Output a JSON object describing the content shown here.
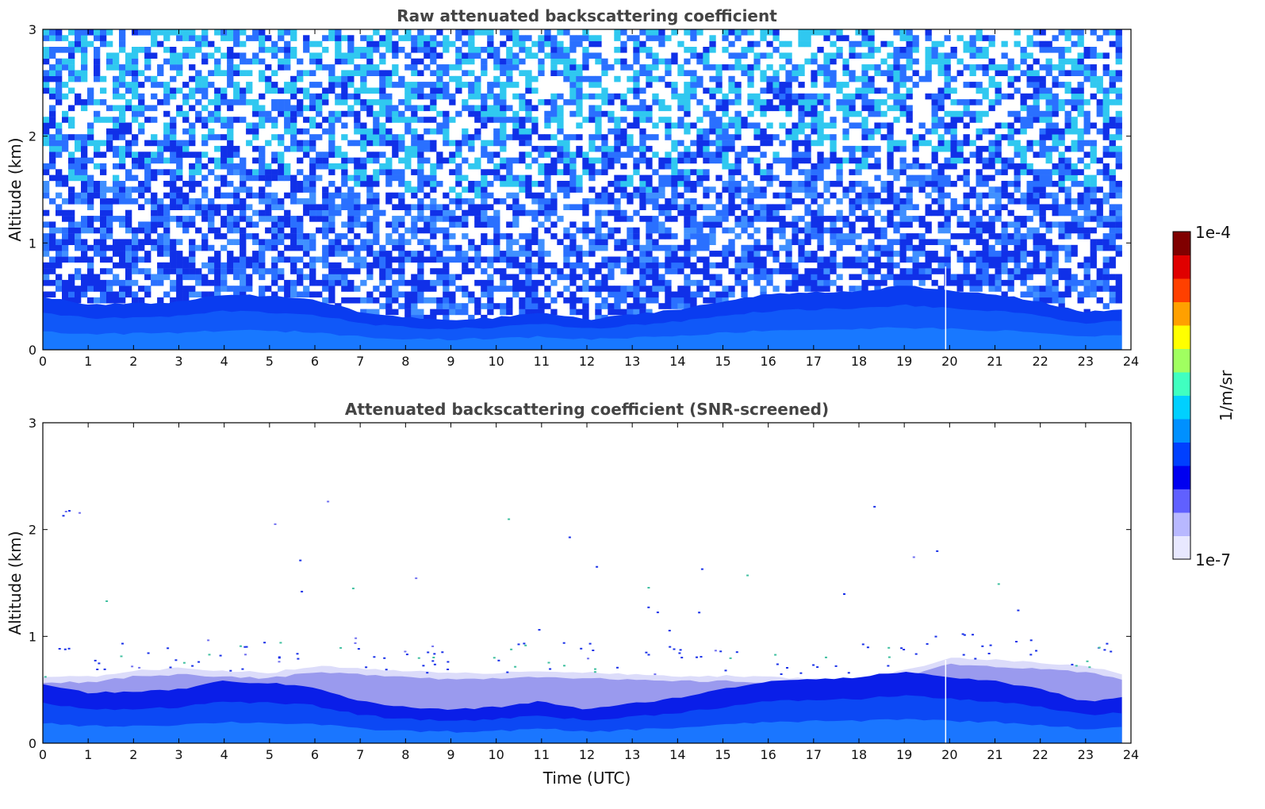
{
  "chart_data": [
    {
      "type": "heatmap",
      "title": "Raw attenuated backscattering coefficient",
      "xlabel": "",
      "ylabel": "Altitude (km)",
      "xlim": [
        0,
        24
      ],
      "ylim": [
        0,
        3
      ],
      "x_ticks": [
        "0",
        "1",
        "2",
        "3",
        "4",
        "5",
        "6",
        "7",
        "8",
        "9",
        "10",
        "11",
        "12",
        "13",
        "14",
        "15",
        "16",
        "17",
        "18",
        "19",
        "20",
        "21",
        "22",
        "23",
        "24"
      ],
      "y_ticks": [
        "0",
        "1",
        "2",
        "3"
      ],
      "x": [
        0,
        1,
        2,
        3,
        4,
        5,
        6,
        7,
        8,
        9,
        10,
        11,
        12,
        13,
        14,
        15,
        16,
        17,
        18,
        19,
        20,
        21,
        22,
        23,
        23.8
      ],
      "boundary_layer_top_km": [
        0.5,
        0.42,
        0.43,
        0.45,
        0.52,
        0.5,
        0.47,
        0.35,
        0.3,
        0.28,
        0.3,
        0.35,
        0.28,
        0.33,
        0.38,
        0.45,
        0.52,
        0.54,
        0.55,
        0.6,
        0.55,
        0.52,
        0.45,
        0.35,
        0.38
      ],
      "data_gap_x": 19.9,
      "data_end_x": 23.8
    },
    {
      "type": "heatmap",
      "title": "Attenuated backscattering coefficient (SNR-screened)",
      "xlabel": "Time (UTC)",
      "ylabel": "Altitude (km)",
      "xlim": [
        0,
        24
      ],
      "ylim": [
        0,
        3
      ],
      "x_ticks": [
        "0",
        "1",
        "2",
        "3",
        "4",
        "5",
        "6",
        "7",
        "8",
        "9",
        "10",
        "11",
        "12",
        "13",
        "14",
        "15",
        "16",
        "17",
        "18",
        "19",
        "20",
        "21",
        "22",
        "23",
        "24"
      ],
      "y_ticks": [
        "0",
        "1",
        "2",
        "3"
      ],
      "x": [
        0,
        1,
        2,
        3,
        4,
        5,
        6,
        7,
        8,
        9,
        10,
        11,
        12,
        13,
        14,
        15,
        16,
        17,
        18,
        19,
        20,
        21,
        22,
        23,
        23.8
      ],
      "boundary_layer_top_km": [
        0.5,
        0.42,
        0.43,
        0.45,
        0.52,
        0.5,
        0.47,
        0.35,
        0.3,
        0.28,
        0.3,
        0.35,
        0.28,
        0.33,
        0.38,
        0.45,
        0.52,
        0.54,
        0.55,
        0.6,
        0.55,
        0.52,
        0.45,
        0.35,
        0.38
      ],
      "screened_top_km": [
        0.62,
        0.62,
        0.68,
        0.7,
        0.68,
        0.66,
        0.72,
        0.7,
        0.68,
        0.65,
        0.66,
        0.68,
        0.66,
        0.64,
        0.63,
        0.63,
        0.62,
        0.6,
        0.6,
        0.68,
        0.8,
        0.78,
        0.75,
        0.72,
        0.65
      ],
      "data_gap_x": 19.9,
      "data_end_x": 23.8
    }
  ],
  "colorbar": {
    "label": "1/m/sr",
    "min_label": "1e-7",
    "max_label": "1e-4",
    "scale": "log",
    "stops": [
      "#e8e8ff",
      "#b8b8ff",
      "#6060ff",
      "#0000f0",
      "#0040ff",
      "#0090ff",
      "#00d0ff",
      "#40ffc0",
      "#a0ff60",
      "#ffff00",
      "#ffa000",
      "#ff4000",
      "#e00000",
      "#800000"
    ]
  }
}
